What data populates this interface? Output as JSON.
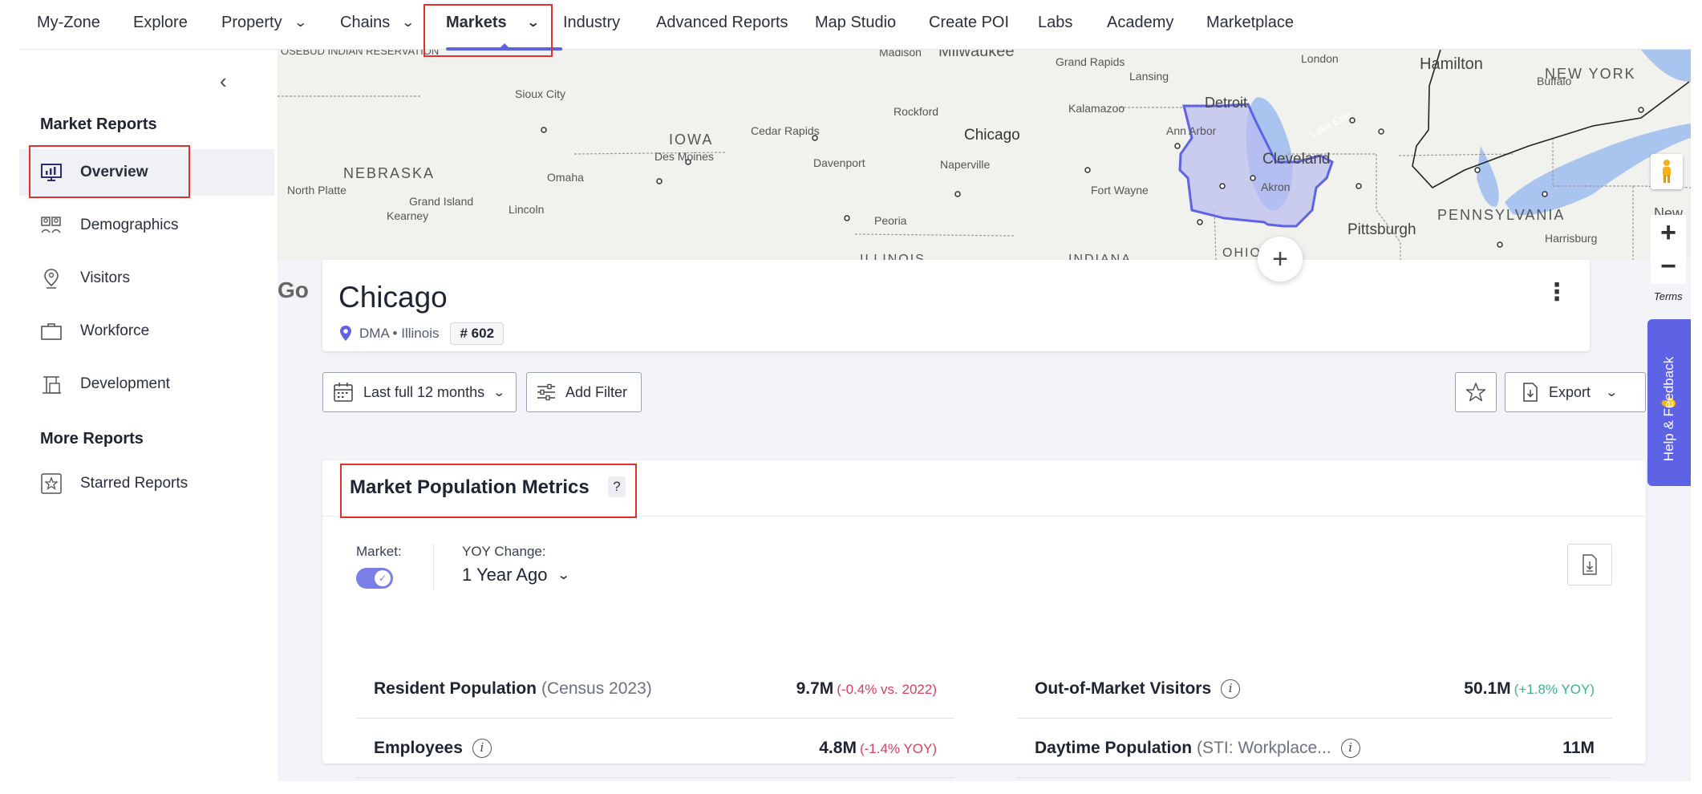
{
  "nav": {
    "items": [
      {
        "label": "My-Zone"
      },
      {
        "label": "Explore"
      },
      {
        "label": "Property"
      },
      {
        "label": "Chains"
      },
      {
        "label": "Markets"
      },
      {
        "label": "Industry"
      },
      {
        "label": "Advanced Reports"
      },
      {
        "label": "Map Studio"
      },
      {
        "label": "Create POI"
      },
      {
        "label": "Labs"
      },
      {
        "label": "Academy"
      },
      {
        "label": "Marketplace"
      }
    ],
    "active": "Markets"
  },
  "sidebar": {
    "section1_title": "Market Reports",
    "items": [
      {
        "label": "Overview",
        "icon": "chart-icon"
      },
      {
        "label": "Demographics",
        "icon": "people-icon"
      },
      {
        "label": "Visitors",
        "icon": "pin-person-icon"
      },
      {
        "label": "Workforce",
        "icon": "briefcase-icon"
      },
      {
        "label": "Development",
        "icon": "crane-icon"
      }
    ],
    "section2_title": "More Reports",
    "more_items": [
      {
        "label": "Starred Reports",
        "icon": "star-icon"
      }
    ]
  },
  "map": {
    "labels": {
      "reservation": "OSEBUD INDIAN RESERVATION",
      "sioux_city": "Sioux City",
      "iowa": "IOWA",
      "cedar_rapids": "Cedar Rapids",
      "des_moines": "Des Moines",
      "nebraska": "NEBRASKA",
      "north_platte": "North Platte",
      "grand_island": "Grand Island",
      "kearney": "Kearney",
      "lincoln": "Lincoln",
      "omaha": "Omaha",
      "davenport": "Davenport",
      "madison": "Madison",
      "milwaukee": "Milwaukee",
      "rockford": "Rockford",
      "chicago": "Chicago",
      "naperville": "Naperville",
      "peoria": "Peoria",
      "grand_rapids": "Grand Rapids",
      "lansing": "Lansing",
      "kalamazoo": "Kalamazoo",
      "fort_wayne": "Fort Wayne",
      "detroit": "Detroit",
      "ann_arbor": "Ann Arbor",
      "cleveland": "Cleveland",
      "lake_erie": "Lake Erie",
      "akron": "Akron",
      "london": "London",
      "hamilton": "Hamilton",
      "buffalo": "Buffalo",
      "new_york": "NEW YORK",
      "pennsylvania": "PENNSYLVANIA",
      "pittsburgh": "Pittsburgh",
      "harrisburg": "Harrisburg",
      "illinois": "ILLINOIS",
      "indiana": "INDIANA",
      "ohio": "OHIO",
      "new": "New"
    },
    "terms": "Terms",
    "zoom_in": "+",
    "zoom_out": "−",
    "google": "Go"
  },
  "market": {
    "name": "Chicago",
    "subtitle": "DMA • Illinois",
    "rank": "# 602"
  },
  "toolbar": {
    "date_range": "Last full 12 months",
    "add_filter": "Add Filter",
    "export": "Export"
  },
  "metrics": {
    "title": "Market Population Metrics",
    "help": "?",
    "market_label": "Market:",
    "yoy_label": "YOY Change:",
    "yoy_value": "1 Year Ago",
    "rows": [
      {
        "label": "Resident Population",
        "muted": "(Census 2023)",
        "value": "9.7M",
        "change": "(-0.4% vs. 2022)"
      },
      {
        "label": "Out-of-Market Visitors",
        "value": "50.1M",
        "change": "(+1.8% YOY)"
      },
      {
        "label": "Employees",
        "value": "4.8M",
        "change": "(-1.4% YOY)"
      },
      {
        "label": "Daytime Population",
        "muted": "(STI: Workplace...",
        "value": "11M"
      }
    ]
  },
  "help_tab": "Help & Feedback",
  "colors": {
    "accent": "#5e63e6",
    "negative": "#d9405d",
    "positive": "#3db28a",
    "highlight_box": "#e0312e"
  }
}
